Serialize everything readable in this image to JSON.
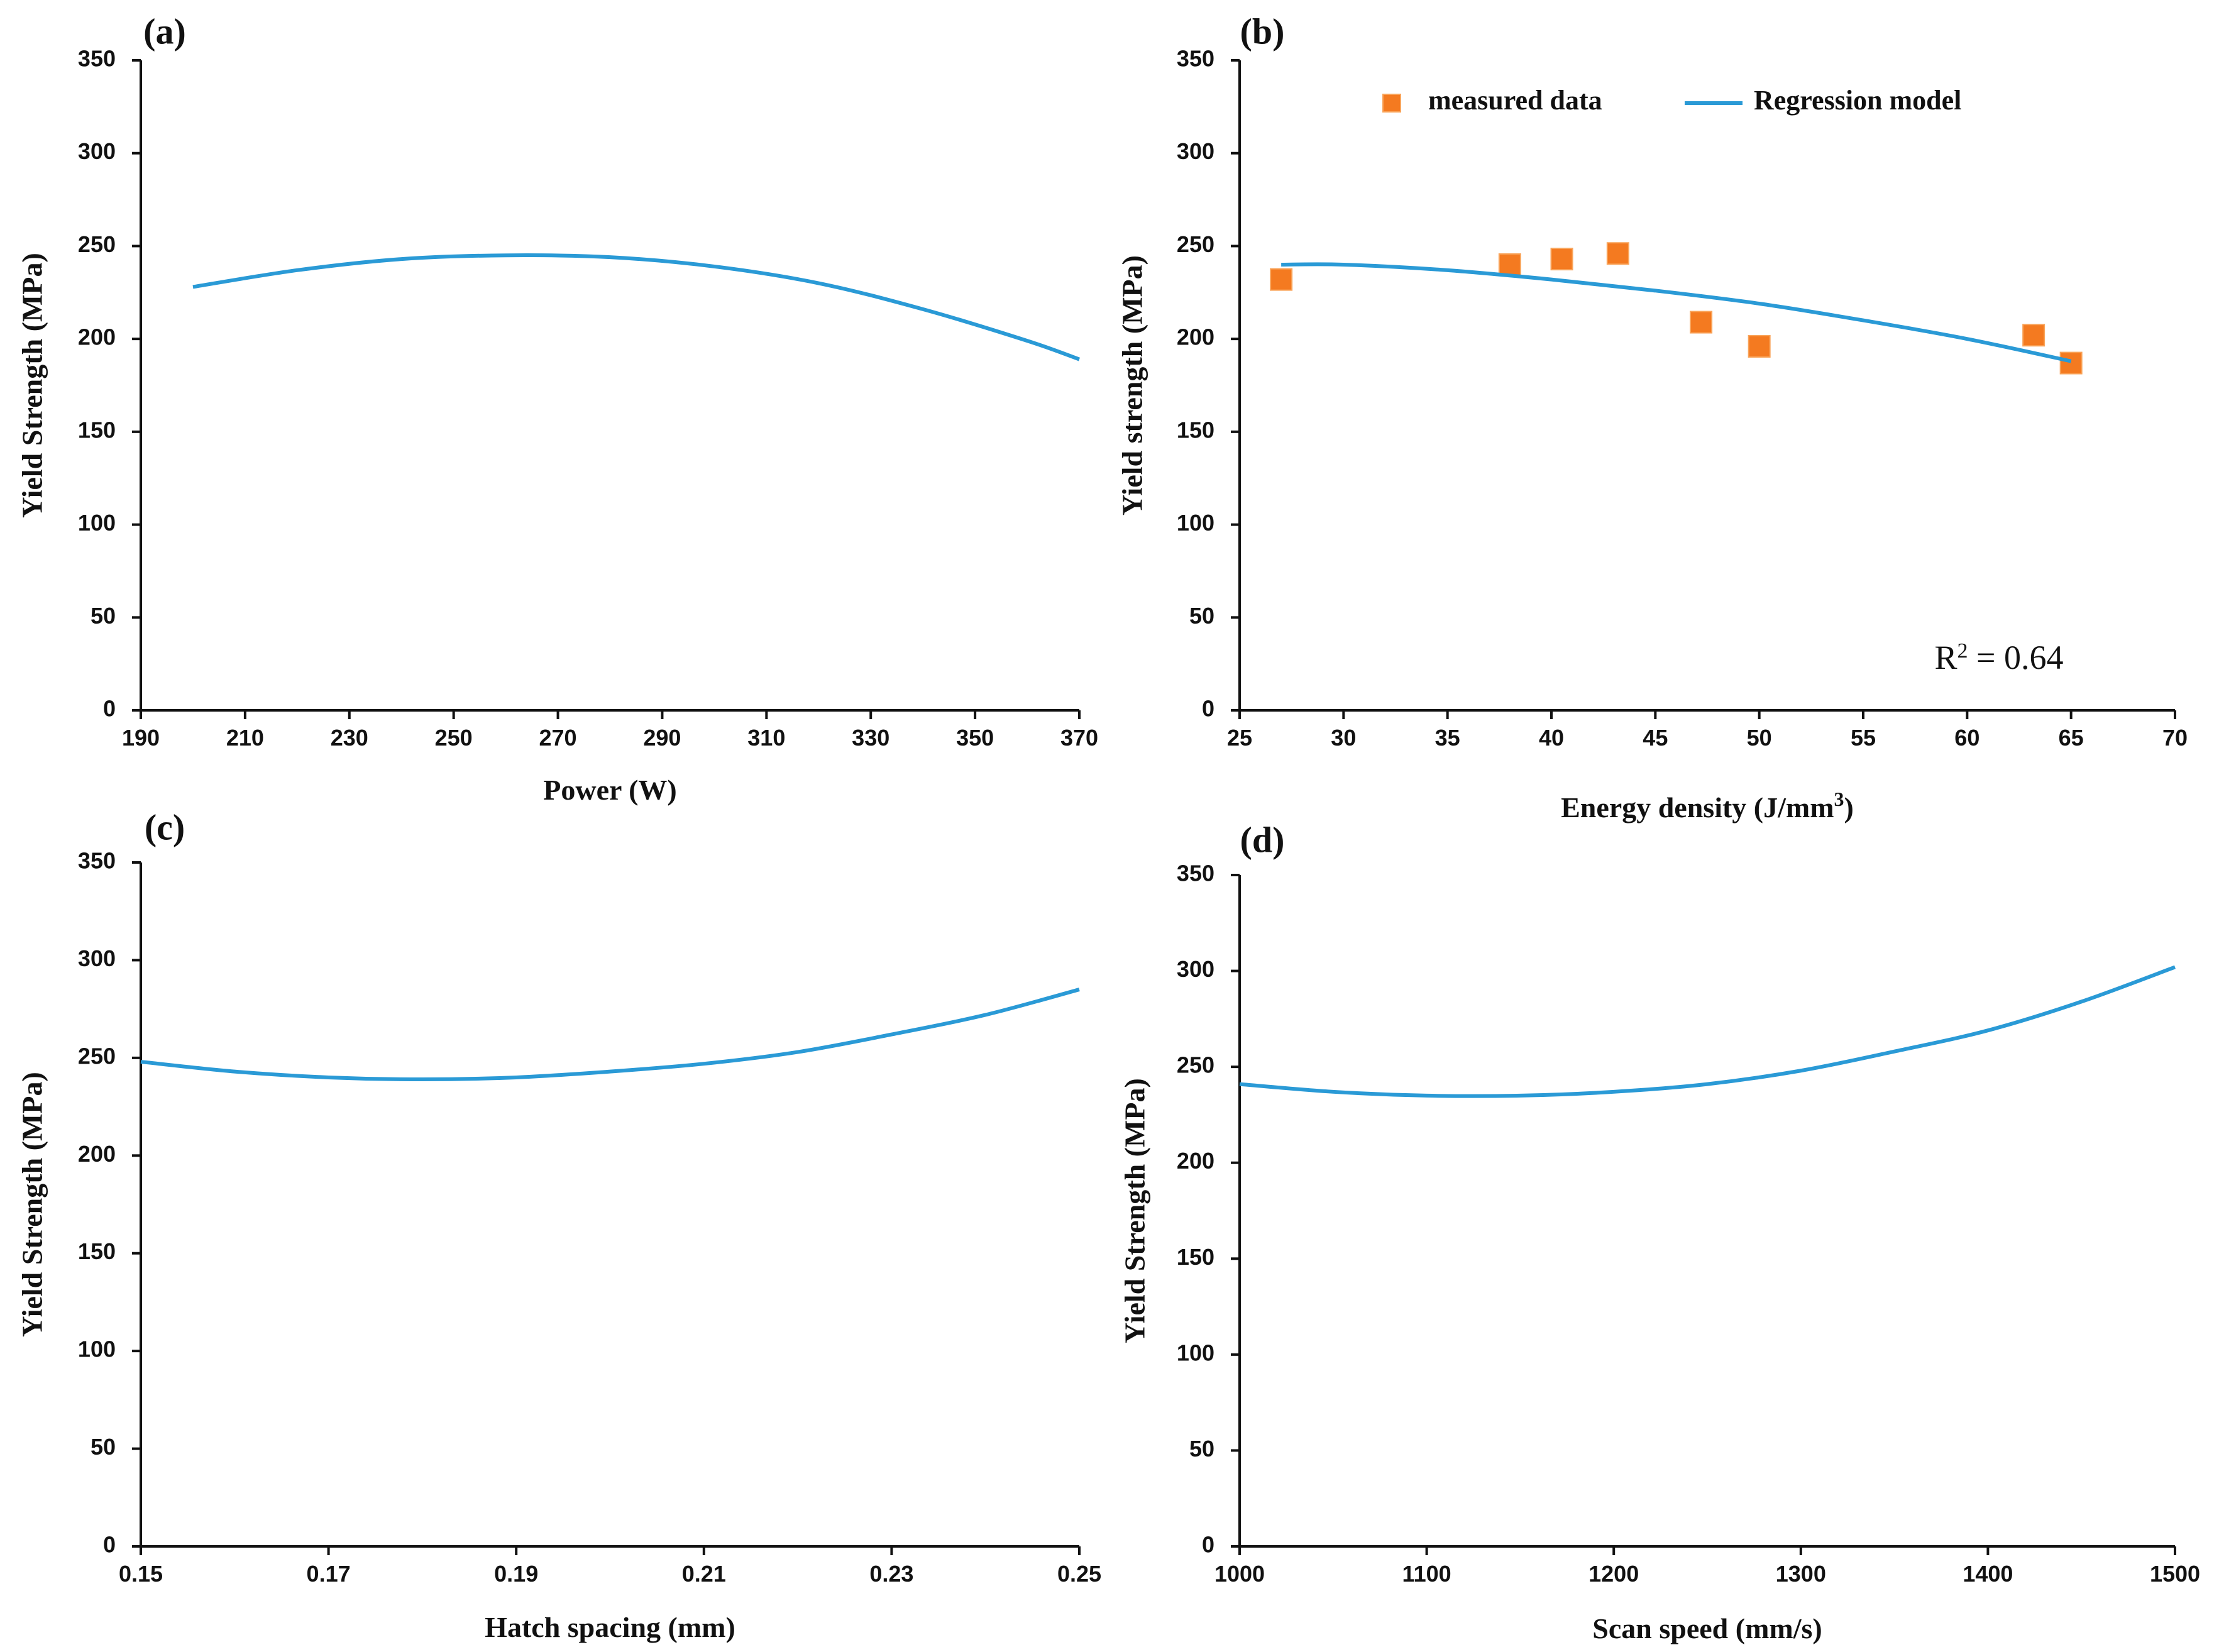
{
  "colors": {
    "curve": "#2a9ad6",
    "marker": "#f47a20",
    "axis": "#111111"
  },
  "chart_data": [
    {
      "id": "a",
      "panel_label": "(a)",
      "type": "line",
      "xlabel": "Power (W)",
      "ylabel": "Yield Strength (MPa)",
      "xlim": [
        190,
        370
      ],
      "ylim": [
        0,
        350
      ],
      "xticks": [
        190,
        210,
        230,
        250,
        270,
        290,
        310,
        330,
        350,
        370
      ],
      "yticks": [
        0,
        50,
        100,
        150,
        200,
        250,
        300,
        350
      ],
      "series": [
        {
          "name": "Regression model",
          "x": [
            200,
            220,
            240,
            260,
            280,
            300,
            320,
            340,
            360,
            370
          ],
          "y": [
            228,
            237,
            243,
            245,
            244,
            239,
            230,
            216,
            199,
            189
          ]
        }
      ]
    },
    {
      "id": "b",
      "panel_label": "(b)",
      "type": "scatter",
      "xlabel": "Energy density (J/mm",
      "xlabel_sup": "3",
      "xlabel_end": ")",
      "ylabel": "Yield strength (MPa)",
      "xlim": [
        25,
        70
      ],
      "ylim": [
        0,
        350
      ],
      "xticks": [
        25,
        30,
        35,
        40,
        45,
        50,
        55,
        60,
        65,
        70
      ],
      "yticks": [
        0,
        50,
        100,
        150,
        200,
        250,
        300,
        350
      ],
      "legend": {
        "measured": "measured data",
        "model": "Regression model"
      },
      "annotation": {
        "r2_label": "R",
        "r2_sup": "2",
        "r2_value": " = 0.64"
      },
      "series": [
        {
          "name": "measured data",
          "kind": "scatter",
          "x": [
            27,
            38,
            40.5,
            43.2,
            47.2,
            50,
            63.2,
            65
          ],
          "y": [
            232,
            240,
            243,
            246,
            209,
            196,
            202,
            187
          ]
        },
        {
          "name": "Regression model",
          "kind": "line",
          "x": [
            27,
            30,
            35,
            40,
            45,
            50,
            55,
            60,
            65
          ],
          "y": [
            240,
            240,
            237,
            232,
            226,
            219,
            210,
            200,
            188
          ]
        }
      ]
    },
    {
      "id": "c",
      "panel_label": "(c)",
      "type": "line",
      "xlabel": "Hatch  spacing (mm)",
      "ylabel": "Yield Strength (MPa)",
      "xlim": [
        0.15,
        0.25
      ],
      "ylim": [
        0,
        350
      ],
      "xticks": [
        0.15,
        0.17,
        0.19,
        0.21,
        0.23,
        0.25
      ],
      "yticks": [
        0,
        50,
        100,
        150,
        200,
        250,
        300,
        350
      ],
      "series": [
        {
          "name": "Regression model",
          "x": [
            0.15,
            0.16,
            0.17,
            0.18,
            0.19,
            0.2,
            0.21,
            0.22,
            0.23,
            0.24,
            0.25
          ],
          "y": [
            248,
            243,
            240,
            239,
            240,
            243,
            247,
            253,
            262,
            272,
            285
          ]
        }
      ]
    },
    {
      "id": "d",
      "panel_label": "(d)",
      "type": "line",
      "xlabel": "Scan speed (mm/s)",
      "ylabel": "Yield Strength (MPa)",
      "xlim": [
        1000,
        1500
      ],
      "ylim": [
        0,
        350
      ],
      "xticks": [
        1000,
        1100,
        1200,
        1300,
        1400,
        1500
      ],
      "yticks": [
        0,
        50,
        100,
        150,
        200,
        250,
        300,
        350
      ],
      "series": [
        {
          "name": "Regression model",
          "x": [
            1000,
            1050,
            1100,
            1150,
            1200,
            1250,
            1300,
            1350,
            1400,
            1450,
            1500
          ],
          "y": [
            241,
            237,
            235,
            235,
            237,
            241,
            248,
            258,
            269,
            284,
            302
          ]
        }
      ]
    }
  ]
}
